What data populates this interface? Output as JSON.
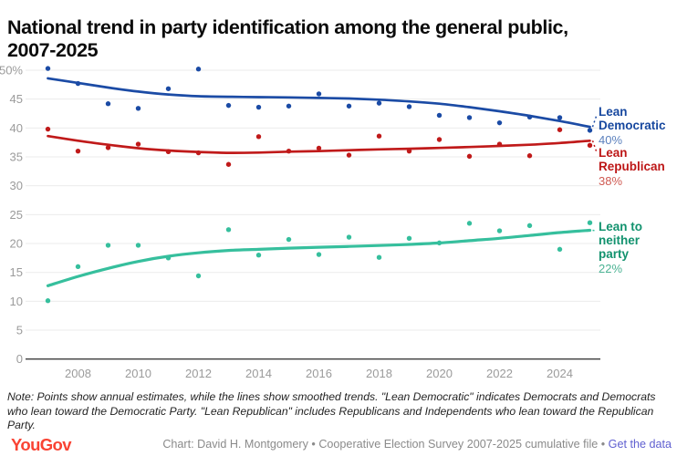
{
  "title": "National trend in party identification among the general public,\n2007-2025",
  "note": "Note: Points show annual estimates, while the lines show smoothed trends. \"Lean Democratic\" indicates Democrats and Democrats who lean toward the Democratic Party. \"Lean Republican\" includes Republicans and Independents who lean toward the Republican Party.",
  "footer": {
    "logo": "YouGov",
    "credit": "Chart: David H. Montgomery",
    "separator1": " • ",
    "source": "Cooperative Election Survey 2007-2025 cumulative file",
    "separator2": " • ",
    "link": "Get the data"
  },
  "colors": {
    "grid": "#ebebeb",
    "axis": "#3c3c3c",
    "tick_text": "#9b9b9b",
    "background": "#ffffff"
  },
  "chart_data": {
    "type": "scatter+line",
    "title": "National trend in party identification among the general public, 2007-2025",
    "x": [
      2007,
      2008,
      2009,
      2010,
      2011,
      2012,
      2013,
      2014,
      2015,
      2016,
      2017,
      2018,
      2019,
      2020,
      2021,
      2022,
      2023,
      2024,
      2025
    ],
    "x_ticks": [
      2008,
      2010,
      2012,
      2014,
      2016,
      2018,
      2020,
      2022,
      2024
    ],
    "y_ticks": [
      0,
      5,
      10,
      15,
      20,
      25,
      30,
      35,
      40,
      45,
      50
    ],
    "y_top_tick_label": "50%",
    "ylim": [
      0,
      52
    ],
    "grid": true,
    "legend_position": "right-end-labels",
    "series": [
      {
        "name": "Lean Democratic",
        "label": "Lean Democratic",
        "end_label": "40%",
        "color": "#1b4ba5",
        "label_color": "#17489f",
        "value_color": "#5b80bd",
        "points": [
          50.3,
          47.7,
          44.2,
          43.4,
          46.8,
          50.2,
          43.9,
          43.6,
          43.8,
          45.9,
          43.8,
          44.3,
          43.7,
          42.2,
          41.8,
          40.9,
          41.9,
          41.8,
          39.6
        ],
        "trend": [
          48.6,
          47.8,
          47.0,
          46.3,
          45.8,
          45.5,
          45.4,
          45.35,
          45.3,
          45.2,
          45.1,
          44.9,
          44.6,
          44.2,
          43.6,
          42.9,
          42.1,
          41.2,
          40.2
        ]
      },
      {
        "name": "Lean Republican",
        "label": "Lean Republican",
        "end_label": "38%",
        "color": "#c01a1a",
        "label_color": "#bd1717",
        "value_color": "#cf5a52",
        "points": [
          39.8,
          36.0,
          36.6,
          37.2,
          35.9,
          35.7,
          33.7,
          38.5,
          36.0,
          36.5,
          35.3,
          38.6,
          36.0,
          38.0,
          35.1,
          37.2,
          35.2,
          39.7,
          37.0
        ],
        "trend": [
          38.6,
          37.8,
          37.1,
          36.5,
          36.1,
          35.85,
          35.7,
          35.75,
          35.9,
          36.0,
          36.15,
          36.3,
          36.4,
          36.55,
          36.7,
          36.9,
          37.1,
          37.4,
          37.8
        ]
      },
      {
        "name": "Lean to neither party",
        "label": "Lean to neither party",
        "end_label": "22%",
        "color": "#36bf9d",
        "label_color": "#12926e",
        "value_color": "#4cb394",
        "points": [
          10.1,
          16.0,
          19.7,
          19.7,
          17.5,
          14.4,
          22.4,
          18.0,
          20.7,
          18.1,
          21.1,
          17.6,
          20.9,
          20.1,
          23.5,
          22.2,
          23.1,
          19.0,
          23.6
        ],
        "trend": [
          12.7,
          14.3,
          15.7,
          16.9,
          17.8,
          18.4,
          18.8,
          19.0,
          19.2,
          19.35,
          19.5,
          19.65,
          19.85,
          20.1,
          20.5,
          20.9,
          21.4,
          21.9,
          22.3
        ]
      }
    ]
  }
}
